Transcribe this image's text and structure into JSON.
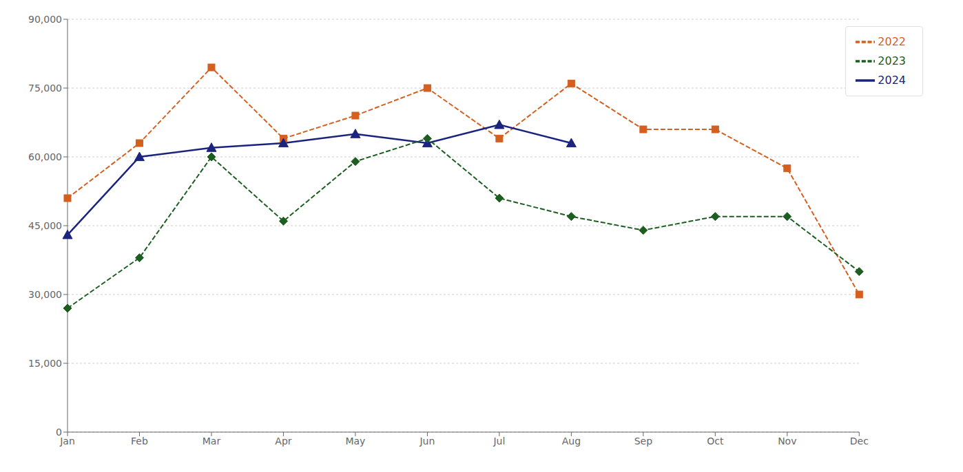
{
  "chart_data": {
    "type": "line",
    "categories": [
      "Jan",
      "Feb",
      "Mar",
      "Apr",
      "May",
      "Jun",
      "Jul",
      "Aug",
      "Sep",
      "Oct",
      "Nov",
      "Dec"
    ],
    "series": [
      {
        "name": "2022",
        "color": "#d45f1e",
        "marker": "square",
        "line_style": "dashed",
        "values": [
          51000,
          63000,
          79500,
          64000,
          69000,
          75000,
          64000,
          76000,
          66000,
          66000,
          57500,
          30000
        ]
      },
      {
        "name": "2024",
        "color": "#1a237e",
        "marker": "triangle",
        "line_style": "solid",
        "values": [
          43000,
          60000,
          62000,
          63000,
          65000,
          63000,
          67000,
          63000,
          null,
          null,
          null,
          null
        ]
      },
      {
        "name": "2023",
        "color": "#1b5e20",
        "marker": "diamond",
        "line_style": "dashed",
        "values": [
          27000,
          38000,
          60000,
          46000,
          59000,
          64000,
          51000,
          47000,
          44000,
          47000,
          47000,
          35000
        ]
      }
    ],
    "ylim": [
      0,
      90000
    ],
    "yticks": [
      0,
      {
        "value": 15000,
        "label": "15,000"
      },
      {
        "value": 30000,
        "label": "30,000"
      },
      {
        "value": 45000,
        "label": "45,000"
      },
      {
        "value": 60000,
        "label": "60,000"
      },
      {
        "value": 75000,
        "label": "75,000"
      },
      {
        "value": 90000,
        "label": "90,000"
      }
    ],
    "grid": true,
    "legend": "upper right"
  }
}
